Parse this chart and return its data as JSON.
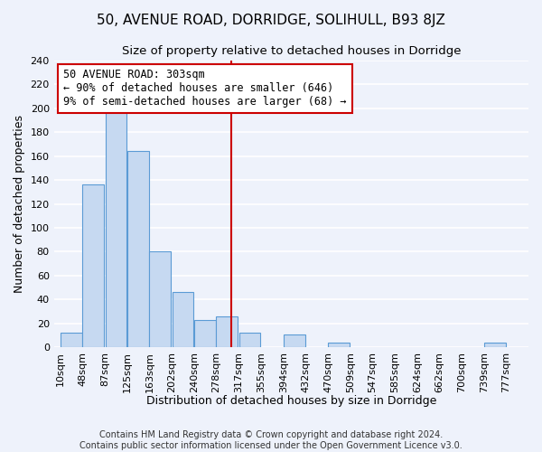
{
  "title": "50, AVENUE ROAD, DORRIDGE, SOLIHULL, B93 8JZ",
  "subtitle": "Size of property relative to detached houses in Dorridge",
  "xlabel": "Distribution of detached houses by size in Dorridge",
  "ylabel": "Number of detached properties",
  "bin_labels": [
    "10sqm",
    "48sqm",
    "87sqm",
    "125sqm",
    "163sqm",
    "202sqm",
    "240sqm",
    "278sqm",
    "317sqm",
    "355sqm",
    "394sqm",
    "432sqm",
    "470sqm",
    "509sqm",
    "547sqm",
    "585sqm",
    "624sqm",
    "662sqm",
    "700sqm",
    "739sqm",
    "777sqm"
  ],
  "bar_values": [
    12,
    136,
    197,
    164,
    80,
    46,
    23,
    26,
    12,
    0,
    11,
    0,
    4,
    0,
    0,
    0,
    0,
    0,
    0,
    4,
    0
  ],
  "bar_color": "#c6d9f1",
  "bar_edge_color": "#5b9bd5",
  "vline_x_index": 7.83,
  "vline_color": "#cc0000",
  "annotation_line1": "50 AVENUE ROAD: 303sqm",
  "annotation_line2": "← 90% of detached houses are smaller (646)",
  "annotation_line3": "9% of semi-detached houses are larger (68) →",
  "annotation_box_edge_color": "#cc0000",
  "annotation_box_face_color": "#ffffff",
  "ylim": [
    0,
    240
  ],
  "yticks": [
    0,
    20,
    40,
    60,
    80,
    100,
    120,
    140,
    160,
    180,
    200,
    220,
    240
  ],
  "bin_edges": [
    10,
    48,
    87,
    125,
    163,
    202,
    240,
    278,
    317,
    355,
    394,
    432,
    470,
    509,
    547,
    585,
    624,
    662,
    700,
    739,
    777
  ],
  "footer_line1": "Contains HM Land Registry data © Crown copyright and database right 2024.",
  "footer_line2": "Contains public sector information licensed under the Open Government Licence v3.0.",
  "background_color": "#eef2fb",
  "grid_color": "#ffffff",
  "title_fontsize": 11,
  "subtitle_fontsize": 9.5,
  "axis_label_fontsize": 9,
  "tick_fontsize": 8,
  "annotation_fontsize": 8.5,
  "footer_fontsize": 7
}
